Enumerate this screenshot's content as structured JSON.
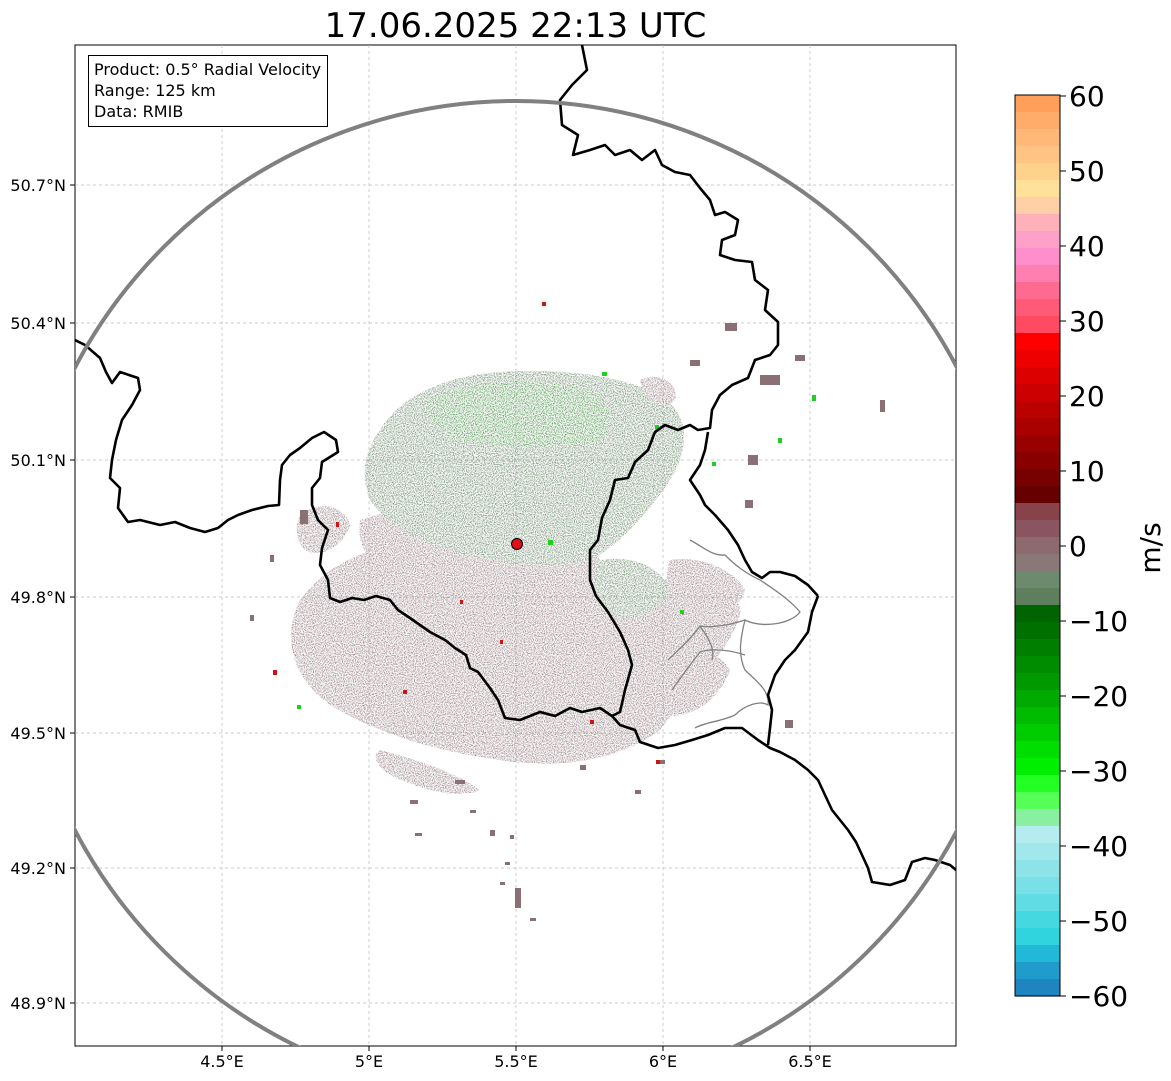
{
  "title": "17.06.2025 22:13 UTC",
  "info_box": {
    "product": "Product: 0.5° Radial Velocity",
    "range": "Range: 125 km",
    "data": "Data: RMIB"
  },
  "map": {
    "lon_ticks": [
      "4.5°E",
      "5°E",
      "5.5°E",
      "6°E",
      "6.5°E"
    ],
    "lat_ticks": [
      "50.7°N",
      "50.4°N",
      "50.1°N",
      "49.8°N",
      "49.5°N",
      "49.2°N",
      "48.9°N"
    ],
    "radar_site_marker": "radar-site",
    "range_ring_color": "#808080",
    "border_color": "#000000",
    "admin_border_color": "#808080"
  },
  "colorbar": {
    "label": "m/s",
    "ticks": [
      "60",
      "50",
      "40",
      "30",
      "20",
      "10",
      "0",
      "−10",
      "−20",
      "−30",
      "−40",
      "−50",
      "−60"
    ]
  },
  "colors": {
    "negative_low": "#1f78b4",
    "negative_mid": "#00e600",
    "near_zero_negative": "#5e7f5e",
    "near_zero_positive": "#8a7075",
    "positive_mid": "#cc0000",
    "positive_high": "#ff9f5a"
  }
}
